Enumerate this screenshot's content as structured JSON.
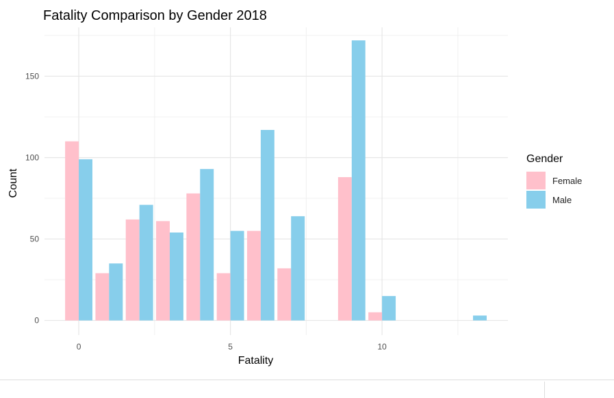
{
  "chart_data": {
    "type": "bar",
    "title": "Fatality Comparison by Gender 2018",
    "xlabel": "Fatality",
    "ylabel": "Count",
    "x": [
      0,
      1,
      2,
      3,
      4,
      5,
      6,
      7,
      9,
      10,
      13
    ],
    "series": [
      {
        "name": "Female",
        "color": "#FFC0CB",
        "values": [
          110,
          29,
          62,
          61,
          78,
          29,
          55,
          32,
          88,
          5,
          null
        ]
      },
      {
        "name": "Male",
        "color": "#87CEEB",
        "values": [
          99,
          35,
          71,
          54,
          93,
          55,
          117,
          64,
          172,
          15,
          3
        ]
      }
    ],
    "xticks": [
      0,
      5,
      10
    ],
    "yticks": [
      0,
      50,
      100,
      150
    ],
    "xlim": [
      -1.13,
      14.15
    ],
    "ylim": [
      -9,
      180
    ],
    "grid": true,
    "legend": {
      "title": "Gender",
      "position": "right"
    }
  }
}
